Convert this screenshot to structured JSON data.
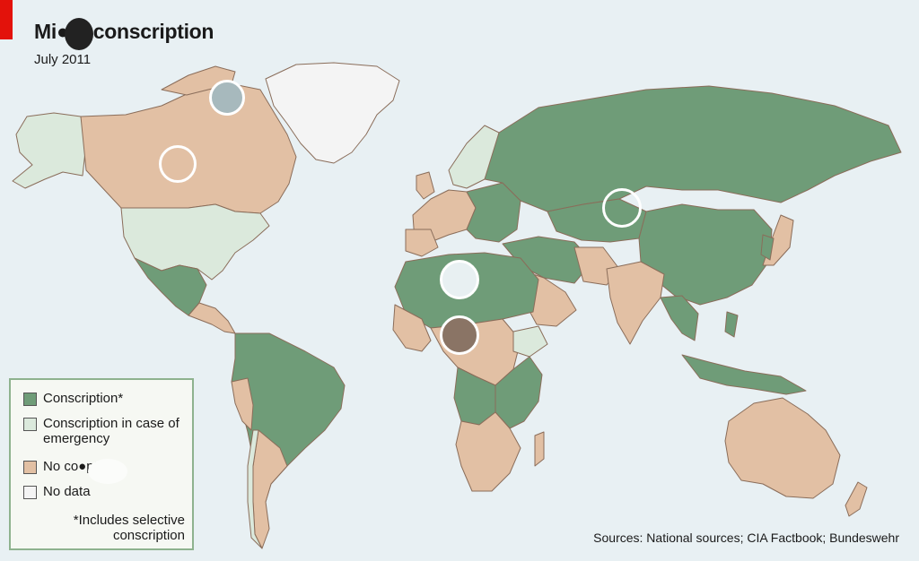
{
  "title": "Mi●ry conscription",
  "subtitle": "July 2011",
  "legend": {
    "items": [
      {
        "label": "Conscription*",
        "color": "#6f9c78"
      },
      {
        "label": "Conscription in case of emergency",
        "color": "#dbe9dc"
      },
      {
        "label": "No co●ption",
        "color": "#e2c0a4"
      },
      {
        "label": "No data",
        "color": "#f4f4f4"
      }
    ],
    "note": "*Includes selective conscription"
  },
  "source": "Sources: National sources; CIA Factbook; Bundeswehr",
  "colors": {
    "ocean": "#e8f0f3",
    "conscription": "#6f9c78",
    "emergency": "#dbe9dc",
    "no_conscription": "#e2c0a4",
    "no_data": "#f4f4f4",
    "border": "#8a6d5a"
  }
}
